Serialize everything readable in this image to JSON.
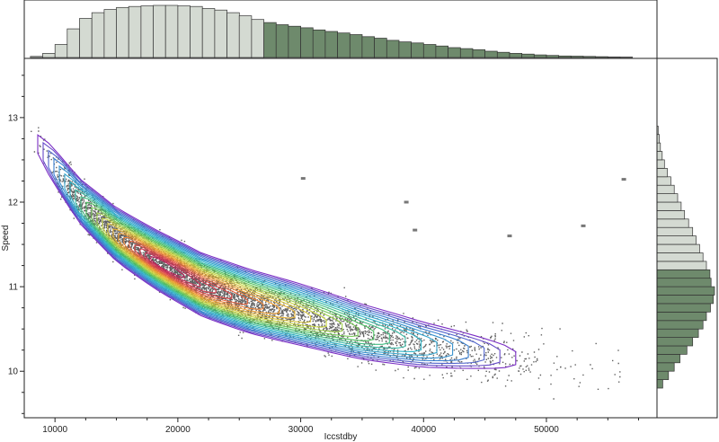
{
  "chart_data": {
    "type": "scatter",
    "subtype": "scatter with density contours and marginal histograms",
    "xlabel": "Iccstdby",
    "ylabel": "Speed",
    "xlim": [
      7500,
      59000
    ],
    "ylim": [
      9.45,
      13.7
    ],
    "x_ticks": [
      10000,
      20000,
      30000,
      40000,
      50000
    ],
    "y_ticks": [
      10,
      11,
      12,
      13
    ],
    "x_tick_labels": [
      "10000",
      "20000",
      "30000",
      "40000",
      "50000"
    ],
    "y_tick_labels": [
      "10",
      "11",
      "12",
      "13"
    ],
    "trend": "Speed decreases as Iccstdby increases; densest region near Iccstdby 18000, Speed 11.3",
    "density_peak": {
      "x": 18500,
      "y": 11.3
    },
    "density_ridge": [
      {
        "x": 9000,
        "y": 12.6
      },
      {
        "x": 12000,
        "y": 12.0
      },
      {
        "x": 15000,
        "y": 11.6
      },
      {
        "x": 18000,
        "y": 11.32
      },
      {
        "x": 22000,
        "y": 11.0
      },
      {
        "x": 26000,
        "y": 10.8
      },
      {
        "x": 30000,
        "y": 10.65
      },
      {
        "x": 35000,
        "y": 10.45
      },
      {
        "x": 40000,
        "y": 10.3
      },
      {
        "x": 45000,
        "y": 10.2
      },
      {
        "x": 50000,
        "y": 10.1
      },
      {
        "x": 55000,
        "y": 10.05
      }
    ],
    "outliers": [
      {
        "x": 30200,
        "y": 12.28
      },
      {
        "x": 38600,
        "y": 12.0
      },
      {
        "x": 39300,
        "y": 11.67
      },
      {
        "x": 47000,
        "y": 11.6
      },
      {
        "x": 53000,
        "y": 11.72
      },
      {
        "x": 56300,
        "y": 12.27
      }
    ],
    "x_histogram": {
      "bin_width": 1000,
      "bin_starts": [
        8000,
        9000,
        10000,
        11000,
        12000,
        13000,
        14000,
        15000,
        16000,
        17000,
        18000,
        19000,
        20000,
        21000,
        22000,
        23000,
        24000,
        25000,
        26000,
        27000,
        28000,
        29000,
        30000,
        31000,
        32000,
        33000,
        34000,
        35000,
        36000,
        37000,
        38000,
        39000,
        40000,
        41000,
        42000,
        43000,
        44000,
        45000,
        46000,
        47000,
        48000,
        49000,
        50000,
        51000,
        52000,
        53000,
        54000,
        55000,
        56000
      ],
      "relative_counts": [
        0.02,
        0.08,
        0.25,
        0.55,
        0.75,
        0.86,
        0.92,
        0.96,
        0.98,
        0.99,
        1.0,
        1.0,
        0.99,
        0.98,
        0.94,
        0.91,
        0.86,
        0.8,
        0.73,
        0.67,
        0.63,
        0.6,
        0.57,
        0.53,
        0.5,
        0.47,
        0.44,
        0.4,
        0.37,
        0.33,
        0.3,
        0.28,
        0.25,
        0.22,
        0.19,
        0.17,
        0.15,
        0.12,
        0.1,
        0.08,
        0.065,
        0.05,
        0.04,
        0.03,
        0.025,
        0.02,
        0.015,
        0.01,
        0.008
      ],
      "highlight_from": 27000,
      "colors": {
        "base": "#d4dad2",
        "highlight": "#6e8a6c"
      }
    },
    "y_histogram": {
      "bin_width": 0.1,
      "bin_starts": [
        9.8,
        9.9,
        10.0,
        10.1,
        10.2,
        10.3,
        10.4,
        10.5,
        10.6,
        10.7,
        10.8,
        10.9,
        11.0,
        11.1,
        11.2,
        11.3,
        11.4,
        11.5,
        11.6,
        11.7,
        11.8,
        11.9,
        12.0,
        12.1,
        12.2,
        12.3,
        12.4,
        12.5,
        12.6,
        12.7,
        12.8
      ],
      "relative_counts": [
        0.1,
        0.2,
        0.3,
        0.4,
        0.52,
        0.62,
        0.72,
        0.8,
        0.86,
        0.93,
        0.98,
        1.0,
        0.94,
        0.92,
        0.86,
        0.8,
        0.74,
        0.68,
        0.62,
        0.55,
        0.48,
        0.42,
        0.36,
        0.3,
        0.24,
        0.18,
        0.13,
        0.09,
        0.06,
        0.04,
        0.02
      ],
      "highlight_below": 11.2,
      "colors": {
        "base": "#d4dad2",
        "highlight": "#6e8a6c"
      }
    },
    "colors": {
      "points": "#2a2a2a",
      "outliers": "#777777",
      "contour_scale": [
        "#7b2ec4",
        "#3a7fd0",
        "#2fb5c8",
        "#4cc060",
        "#c8d640",
        "#f2a030",
        "#e04848",
        "#c0205c"
      ]
    },
    "grid": false
  }
}
